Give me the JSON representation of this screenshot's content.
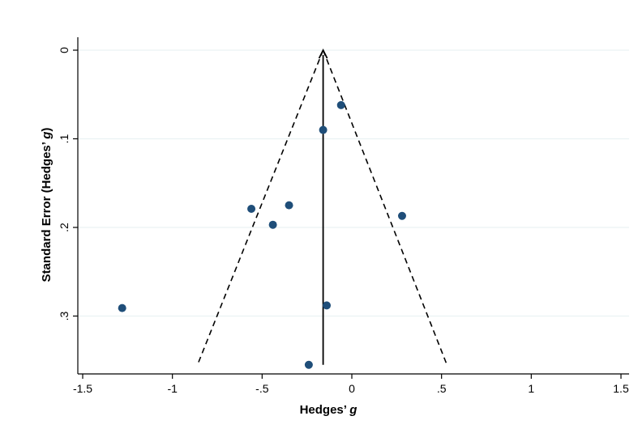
{
  "chart_data": {
    "type": "scatter",
    "title": "",
    "xlabel": "Hedges’ ",
    "xlabel_italic": "g",
    "ylabel": "Standard Error (Hedges’ ",
    "ylabel_italic": "g",
    "ylabel_close": ")",
    "xlim": [
      -1.5,
      1.5
    ],
    "ylim": [
      0,
      0.355
    ],
    "y_reversed": true,
    "x_ticks": [
      -1.5,
      -1,
      -0.5,
      0,
      0.5,
      1,
      1.5
    ],
    "x_tick_labels": [
      "-1.5",
      "-1",
      "-.5",
      "0",
      ".5",
      "1",
      "1.5"
    ],
    "y_ticks": [
      0,
      0.1,
      0.2,
      0.3
    ],
    "y_tick_labels": [
      "0",
      ".1",
      ".2",
      ".3"
    ],
    "grid": "horizontal",
    "pooled_effect": -0.16,
    "funnel": {
      "apex": [
        -0.16,
        0
      ],
      "left_base": [
        -0.86,
        0.355
      ],
      "right_base": [
        0.53,
        0.355
      ]
    },
    "points": [
      {
        "x": -0.06,
        "y": 0.062
      },
      {
        "x": -0.16,
        "y": 0.09
      },
      {
        "x": -0.35,
        "y": 0.175
      },
      {
        "x": -0.56,
        "y": 0.179
      },
      {
        "x": -0.44,
        "y": 0.197
      },
      {
        "x": 0.28,
        "y": 0.187
      },
      {
        "x": -1.28,
        "y": 0.291
      },
      {
        "x": -0.14,
        "y": 0.288
      },
      {
        "x": -0.24,
        "y": 0.355
      }
    ],
    "colors": {
      "points": "#1f4e79",
      "axes": "#000000",
      "grid": "#eaf2f3"
    }
  }
}
